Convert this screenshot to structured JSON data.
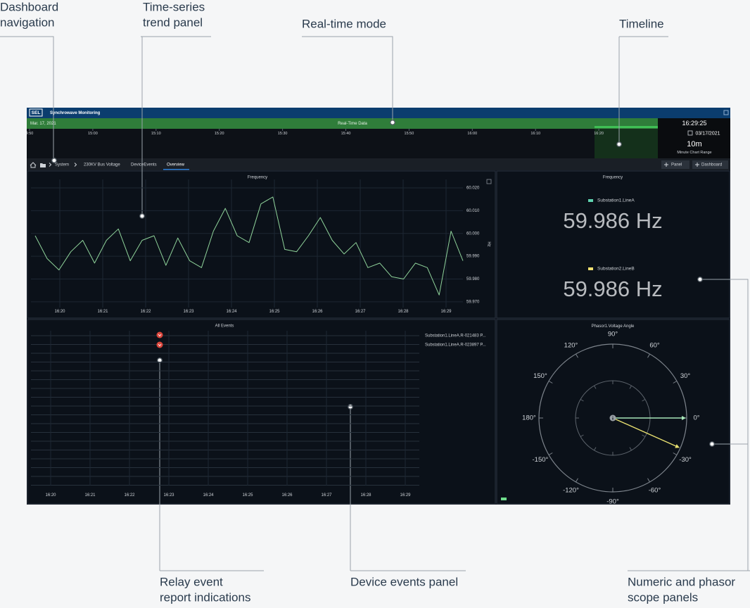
{
  "callouts": [
    {
      "lines": [
        "Dashboard",
        "navigation"
      ]
    },
    {
      "lines": [
        "Time-series",
        "trend panel"
      ]
    },
    {
      "lines": [
        "Real-time mode"
      ]
    },
    {
      "lines": [
        "Timeline"
      ]
    },
    {
      "lines": [
        "Relay event",
        "report indications"
      ]
    },
    {
      "lines": [
        "Device events panel"
      ]
    },
    {
      "lines": [
        "Numeric and phasor",
        "scope panels"
      ]
    }
  ],
  "app": {
    "logo": "SEL",
    "title": "Synchrowave Monitoring",
    "date": "Mar. 17, 2021",
    "mode": "Real-Time Data",
    "timeline_ticks": [
      "4:50",
      "15:00",
      "15:10",
      "15:20",
      "15:30",
      "15:40",
      "15:50",
      "16:00",
      "16:10",
      "16:20"
    ],
    "clock": "16:29:25",
    "clock_date": "03/17/2021",
    "range": "10m",
    "range_label": "Minute Chart Range"
  },
  "nav": {
    "crumbs": [
      "System",
      "230KV Bus Voltage",
      "DeviceEvents",
      "Overview"
    ],
    "buttons": [
      "Panel",
      "Dashboard"
    ]
  },
  "trend": {
    "title": "Frequency",
    "y_label": "Hz",
    "ylim": [
      59.9675,
      60.0237
    ],
    "yticks": [
      {
        "value": 60.02,
        "label": "60.020"
      },
      {
        "value": 60.01,
        "label": "60.010"
      },
      {
        "value": 60.0,
        "label": "60.000"
      },
      {
        "value": 59.99,
        "label": "59.990"
      },
      {
        "value": 59.98,
        "label": "59.980"
      },
      {
        "value": 59.97,
        "label": "59.970"
      }
    ],
    "xticks": [
      "16:20",
      "16:21",
      "16:22",
      "16:23",
      "16:24",
      "16:25",
      "16:26",
      "16:27",
      "16:28",
      "16:29"
    ],
    "color": "#8fd39a",
    "values": [
      59.999,
      59.989,
      59.984,
      59.992,
      59.997,
      59.987,
      59.997,
      60.002,
      59.988,
      59.997,
      59.999,
      59.986,
      59.998,
      59.988,
      59.985,
      60.001,
      60.011,
      59.999,
      59.996,
      60.013,
      60.016,
      59.993,
      59.992,
      59.999,
      60.007,
      59.997,
      59.991,
      59.996,
      59.985,
      59.987,
      59.981,
      59.98,
      59.987,
      59.985,
      59.973,
      60.001,
      59.988
    ]
  },
  "numeric": {
    "title": "Frequency",
    "items": [
      {
        "name": "Substation1.LineA",
        "color": "#5fd3b0",
        "reading": "59.986 Hz"
      },
      {
        "name": "Substation2.LineB",
        "color": "#f0e070",
        "reading": "59.986 Hz"
      }
    ]
  },
  "events": {
    "title": "All Events",
    "xticks": [
      "16:20",
      "16:21",
      "16:22",
      "16:23",
      "16:24",
      "16:25",
      "16:26",
      "16:27",
      "16:28",
      "16:29"
    ],
    "list": [
      "Substation1.LineA.R-021483 P...",
      "Substation1.LineA.R-023897 P..."
    ]
  },
  "phasor": {
    "title": "Phasor1.Voltage Angle",
    "angles": [
      {
        "value": 90,
        "label": "90°"
      },
      {
        "value": 60,
        "label": "60°"
      },
      {
        "value": 30,
        "label": "30°"
      },
      {
        "value": 0,
        "label": "0°"
      },
      {
        "value": -30,
        "label": "-30°"
      },
      {
        "value": -60,
        "label": "-60°"
      },
      {
        "value": -90,
        "label": "-90°"
      },
      {
        "value": -120,
        "label": "-120°"
      },
      {
        "value": -150,
        "label": "-150°"
      },
      {
        "value": 180,
        "label": "180°"
      },
      {
        "value": 150,
        "label": "150°"
      },
      {
        "value": 120,
        "label": "120°"
      }
    ],
    "vectors": [
      {
        "angle": 0,
        "color": "#a8e6b8"
      },
      {
        "angle": -24,
        "color": "#e8e070"
      }
    ]
  }
}
